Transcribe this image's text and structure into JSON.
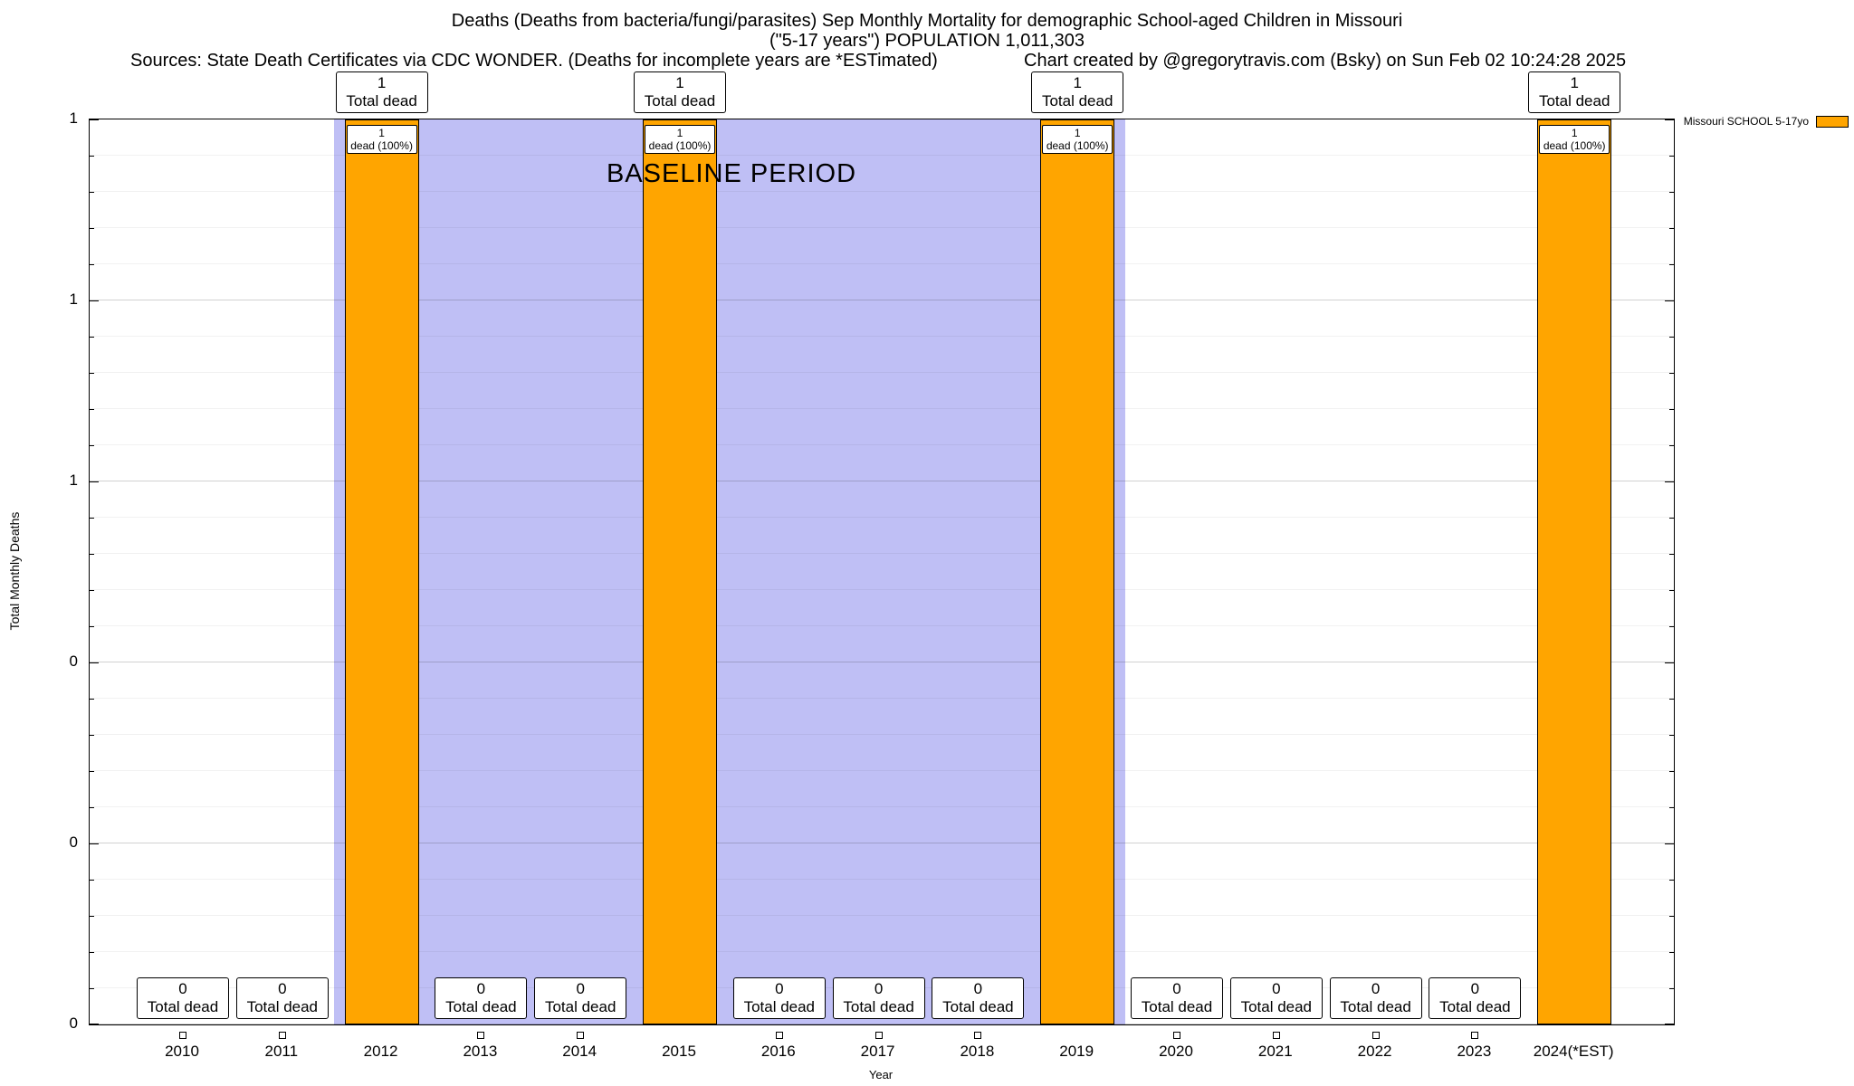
{
  "header": {
    "title_line1": "Deaths (Deaths from bacteria/fungi/parasites) Sep Monthly Mortality for demographic School-aged Children in Missouri",
    "title_line2": "(\"5-17 years\") POPULATION 1,011,303",
    "sources": "Sources: State Death Certificates via CDC WONDER. (Deaths for incomplete years are *ESTimated)",
    "credit": "Chart created by @gregorytravis.com (Bsky) on Sun Feb 02 10:24:28 2025"
  },
  "legend": {
    "label": "Missouri SCHOOL 5-17yo",
    "swatch_color": "#FFA500"
  },
  "chart_data": {
    "type": "bar",
    "title": "Deaths (Deaths from bacteria/fungi/parasites) Sep Monthly Mortality for demographic School-aged Children in Missouri",
    "subtitle": "(\"5-17 years\") POPULATION 1,011,303",
    "xlabel": "Year",
    "ylabel": "Total Monthly Deaths",
    "ylim": [
      0,
      1
    ],
    "grid": "on",
    "legend_position": "top-right",
    "categories": [
      "2010",
      "2011",
      "2012",
      "2013",
      "2014",
      "2015",
      "2016",
      "2017",
      "2018",
      "2019",
      "2020",
      "2021",
      "2022",
      "2023",
      "2024(*EST)"
    ],
    "series": [
      {
        "name": "Missouri SCHOOL 5-17yo",
        "values": [
          0,
          0,
          1,
          0,
          0,
          1,
          0,
          0,
          0,
          1,
          0,
          0,
          0,
          0,
          1
        ]
      }
    ],
    "ytick_labels_bottom_to_top": [
      "0",
      "0",
      "0",
      "1",
      "1",
      "1"
    ],
    "ytick_values_bottom_to_top": [
      0.0,
      0.2,
      0.4,
      0.6,
      0.8,
      1.0
    ],
    "bar_color": "#FFA500",
    "baseline_region": {
      "from": "2012",
      "to": "2019",
      "label": "BASELINE PERIOD",
      "color": "#BFBFF5"
    },
    "labels": {
      "total_caption": "Total dead",
      "pct_caption": "dead (100%)"
    }
  }
}
